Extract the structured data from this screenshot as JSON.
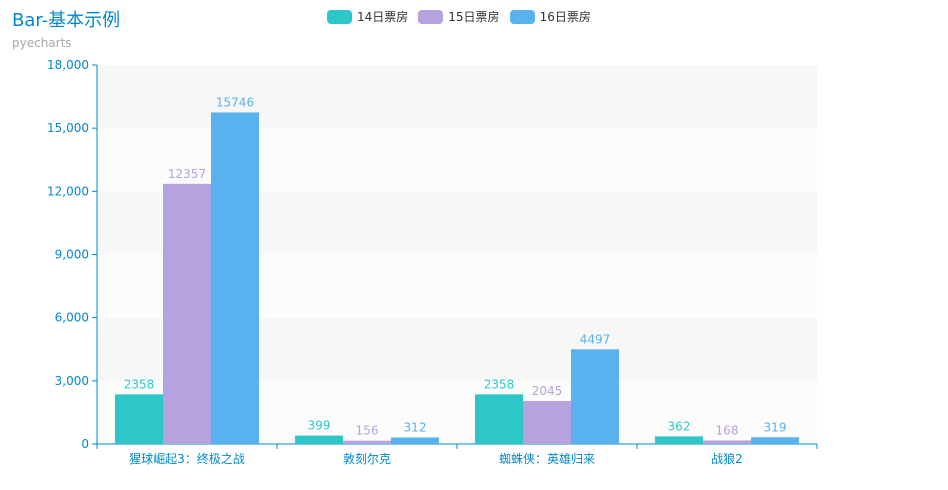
{
  "title": "Bar-基本示例",
  "subtitle": "pyecharts",
  "colors": [
    "#2ec7c9",
    "#b6a2de",
    "#5ab1ef"
  ],
  "axis_color": "#008acd",
  "chart_data": {
    "type": "bar",
    "categories": [
      "猩球崛起3：终极之战",
      "敦刻尔克",
      "蜘蛛侠：英雄归来",
      "战狼2"
    ],
    "series": [
      {
        "name": "14日票房",
        "values": [
          2358,
          399,
          2358,
          362
        ]
      },
      {
        "name": "15日票房",
        "values": [
          12357,
          156,
          2045,
          168
        ]
      },
      {
        "name": "16日票房",
        "values": [
          15746,
          312,
          4497,
          319
        ]
      }
    ],
    "ylim": [
      0,
      18000
    ],
    "yticks": [
      0,
      3000,
      6000,
      9000,
      12000,
      15000,
      18000
    ],
    "ytick_labels": [
      "0",
      "3,000",
      "6,000",
      "9,000",
      "12,000",
      "15,000",
      "18,000"
    ],
    "legend_position": "top-center",
    "grid": "alternating-horizontal-bands"
  }
}
